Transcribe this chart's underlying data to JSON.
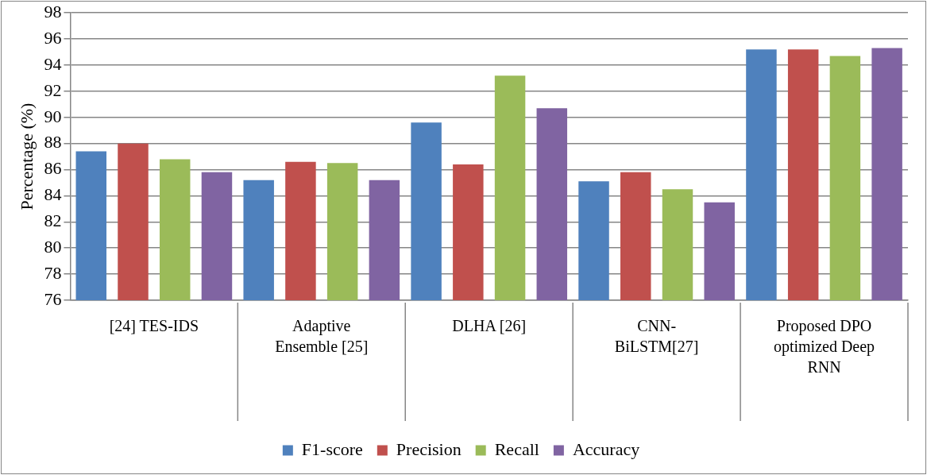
{
  "chart_data": {
    "type": "bar",
    "ylabel": "Percentage (%)",
    "categories": [
      "[24] TES-IDS",
      "Adaptive Ensemble [25]",
      "DLHA [26]",
      "CNN-BiLSTM[27]",
      "Proposed DPO optimized Deep RNN"
    ],
    "series": [
      {
        "name": "F1-score",
        "color": "#4f81bd",
        "values": [
          87.4,
          85.2,
          89.6,
          85.1,
          95.2
        ]
      },
      {
        "name": "Precision",
        "color": "#c0504d",
        "values": [
          88.0,
          86.6,
          86.4,
          85.8,
          95.2
        ]
      },
      {
        "name": "Recall",
        "color": "#9bbb59",
        "values": [
          86.8,
          86.5,
          93.2,
          84.5,
          94.7
        ]
      },
      {
        "name": "Accuracy",
        "color": "#8064a2",
        "values": [
          85.8,
          85.2,
          90.7,
          83.5,
          95.3
        ]
      }
    ],
    "ylim": [
      76,
      98
    ],
    "yticks": [
      76,
      78,
      80,
      82,
      84,
      86,
      88,
      90,
      92,
      94,
      96,
      98
    ],
    "grid": "y",
    "legend": "bottom"
  }
}
